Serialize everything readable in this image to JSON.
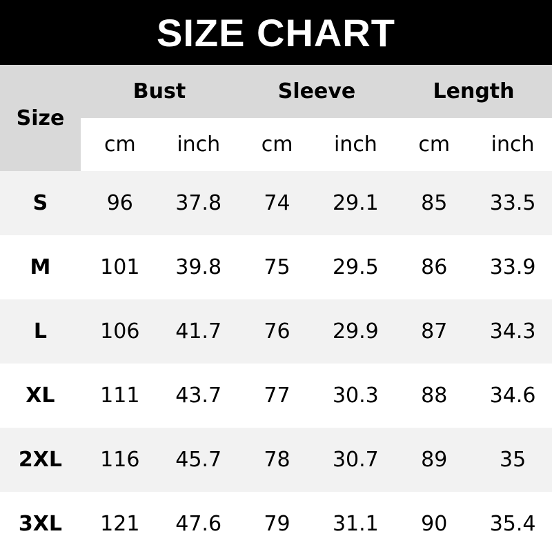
{
  "title": "SIZE CHART",
  "header": {
    "size": "Size",
    "groups": [
      "Bust",
      "Sleeve",
      "Length"
    ],
    "units": [
      "cm",
      "inch",
      "cm",
      "inch",
      "cm",
      "inch"
    ]
  },
  "rows": [
    [
      "S",
      "96",
      "37.8",
      "74",
      "29.1",
      "85",
      "33.5"
    ],
    [
      "M",
      "101",
      "39.8",
      "75",
      "29.5",
      "86",
      "33.9"
    ],
    [
      "L",
      "106",
      "41.7",
      "76",
      "29.9",
      "87",
      "34.3"
    ],
    [
      "XL",
      "111",
      "43.7",
      "77",
      "30.3",
      "88",
      "34.6"
    ],
    [
      "2XL",
      "116",
      "45.7",
      "78",
      "30.7",
      "89",
      "35"
    ],
    [
      "3XL",
      "121",
      "47.6",
      "79",
      "31.1",
      "90",
      "35.4"
    ]
  ],
  "colors": {
    "title_bg": "#000000",
    "header_bg": "#d9d9d9",
    "stripe_bg": "#f2f2f2"
  }
}
